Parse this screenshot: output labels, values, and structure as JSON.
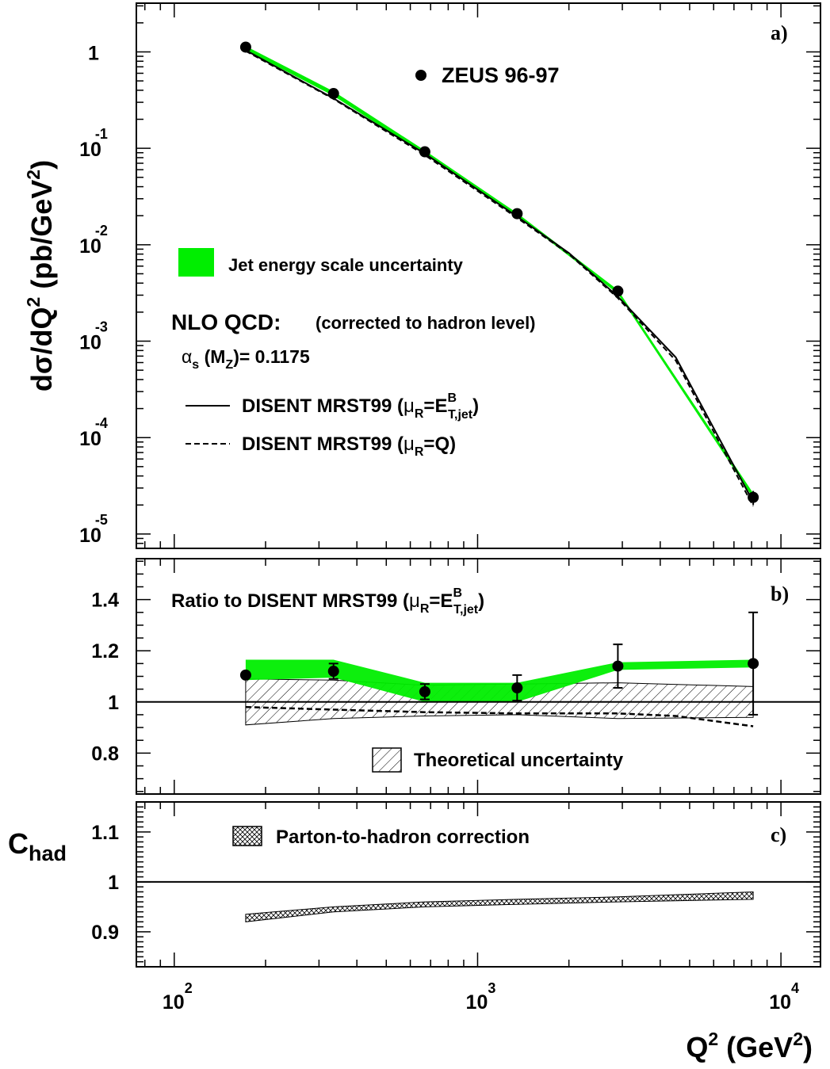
{
  "chart_data": [
    {
      "panel": "a)",
      "type": "line",
      "log_x": true,
      "log_y": true,
      "ylabel": {
        "main": "dσ/dQ",
        "sup": "2",
        "mid": " (pb/GeV",
        "sup2": "2",
        "end": ")"
      },
      "xlim": [
        75,
        13500
      ],
      "ylim": [
        7.1e-06,
        3.2
      ],
      "yticks": [
        {
          "v": 1,
          "base": "1",
          "exp": ""
        },
        {
          "v": 0.1,
          "base": "10",
          "exp": "-1"
        },
        {
          "v": 0.01,
          "base": "10",
          "exp": "-2"
        },
        {
          "v": 0.001,
          "base": "10",
          "exp": "-3"
        },
        {
          "v": 0.0001,
          "base": "10",
          "exp": "-4"
        },
        {
          "v": 1e-05,
          "base": "10",
          "exp": "-5"
        }
      ],
      "data_label": "ZEUS 96-97",
      "data_points": [
        {
          "x": 172,
          "y": 1.12,
          "err": 0.04
        },
        {
          "x": 335,
          "y": 0.37,
          "err": 0.015
        },
        {
          "x": 670,
          "y": 0.092,
          "err": 0.003
        },
        {
          "x": 1350,
          "y": 0.021,
          "err": 0.0008
        },
        {
          "x": 2900,
          "y": 0.0033,
          "err": 0.0002
        },
        {
          "x": 8100,
          "y": 2.4e-05,
          "err": 4e-06
        }
      ],
      "band_label": "Jet energy scale uncertainty",
      "band_color": "#00ee00",
      "band": {
        "x": [
          172,
          335,
          670,
          1350,
          2900,
          8100
        ],
        "low": [
          1.04,
          0.35,
          0.086,
          0.0198,
          0.0031,
          2.35e-05
        ],
        "high": [
          1.15,
          0.39,
          0.095,
          0.0213,
          0.0034,
          2.65e-05
        ]
      },
      "theory_title": "NLO QCD:",
      "theory_note": "(corrected to hadron level)",
      "alpha_s": {
        "sym": "α",
        "sub": "s",
        "mid": " (M",
        "sub2": "Z",
        "end": ")= 0.1175"
      },
      "series": [
        {
          "name": {
            "main": "DISENT MRST99 (",
            "mu": "μ",
            "musub": "R",
            "eq": "=E",
            "sup": "B",
            "sub": "T,jet",
            "end": ")"
          },
          "style": "solid",
          "x": [
            172,
            335,
            670,
            1350,
            2000,
            2900,
            4500,
            8100
          ],
          "y": [
            1.04,
            0.33,
            0.088,
            0.0196,
            0.0082,
            0.0029,
            0.00068,
            2.15e-05
          ]
        },
        {
          "name": {
            "main": "DISENT MRST99 (",
            "mu": "μ",
            "musub": "R",
            "eq": "=Q",
            "end": ")"
          },
          "style": "dashed",
          "x": [
            172,
            335,
            670,
            1350,
            2000,
            2900,
            4500,
            8100
          ],
          "y": [
            1.02,
            0.325,
            0.085,
            0.019,
            0.008,
            0.0028,
            0.00063,
            1.95e-05
          ]
        }
      ]
    },
    {
      "panel": "b)",
      "type": "line",
      "log_x": true,
      "title": {
        "main": "Ratio to DISENT MRST99 (",
        "mu": "μ",
        "musub": "R",
        "eq": "=E",
        "sup": "B",
        "sub": "T,jet",
        "end": ")"
      },
      "ylim": [
        0.64,
        1.56
      ],
      "yticks": [
        "0.8",
        "1",
        "1.2",
        "1.4"
      ],
      "points": [
        {
          "x": 172,
          "y": 1.105,
          "err": 0.0
        },
        {
          "x": 335,
          "y": 1.12,
          "err": 0.03
        },
        {
          "x": 670,
          "y": 1.04,
          "err": 0.03
        },
        {
          "x": 1350,
          "y": 1.055,
          "err": 0.05
        },
        {
          "x": 2900,
          "y": 1.14,
          "err": 0.085
        },
        {
          "x": 8100,
          "y": 1.15,
          "err": 0.2
        }
      ],
      "jes_band": {
        "x": [
          172,
          335,
          670,
          1350,
          2900,
          8100
        ],
        "low": [
          1.085,
          1.095,
          1.0,
          1.0,
          1.125,
          1.135
        ],
        "high": [
          1.165,
          1.165,
          1.075,
          1.075,
          1.155,
          1.165
        ]
      },
      "theory_band_label": "Theoretical uncertainty",
      "theory_band": {
        "x": [
          172,
          335,
          670,
          1350,
          2900,
          8100
        ],
        "low": [
          0.91,
          0.935,
          0.945,
          0.95,
          0.935,
          0.94
        ],
        "high": [
          1.09,
          1.085,
          1.065,
          1.07,
          1.075,
          1.06
        ]
      },
      "dashed_ratio": {
        "x": [
          172,
          335,
          670,
          1350,
          2900,
          4500,
          8100
        ],
        "y": [
          0.98,
          0.97,
          0.96,
          0.955,
          0.955,
          0.945,
          0.905
        ]
      },
      "reference_line": 1
    },
    {
      "panel": "c)",
      "type": "area",
      "log_x": true,
      "ylabel": {
        "main": "C",
        "sub": "had"
      },
      "ylim": [
        0.83,
        1.16
      ],
      "yticks": [
        "0.9",
        "1",
        "1.1"
      ],
      "band_label": "Parton-to-hadron correction",
      "band": {
        "x": [
          172,
          335,
          670,
          1350,
          2900,
          8100
        ],
        "low": [
          0.92,
          0.94,
          0.95,
          0.955,
          0.96,
          0.965
        ],
        "high": [
          0.935,
          0.95,
          0.96,
          0.965,
          0.97,
          0.98
        ]
      },
      "reference_line": 1,
      "xlabel": {
        "main": "Q",
        "sup": "2",
        "mid": " (GeV",
        "sup2": "2",
        "end": ")"
      },
      "xticks": [
        {
          "v": 100,
          "base": "10",
          "exp": "2"
        },
        {
          "v": 1000,
          "base": "10",
          "exp": "3"
        },
        {
          "v": 10000,
          "base": "10",
          "exp": "4"
        }
      ]
    }
  ]
}
